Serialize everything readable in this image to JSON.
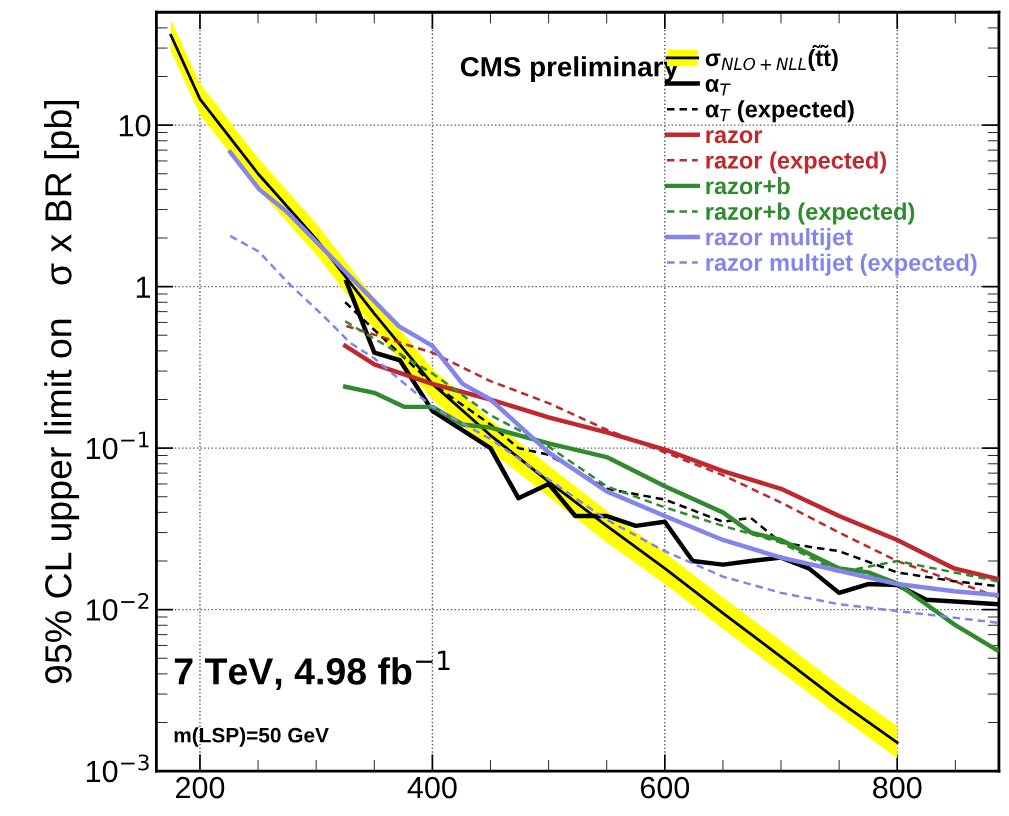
{
  "chart_data": {
    "type": "line",
    "ylabel": "95% CL upper limit on   σ x BR [pb]",
    "xlim": [
      162.5,
      887.5
    ],
    "xticks": [
      200,
      400,
      600,
      800
    ],
    "ylim": [
      0.001,
      50
    ],
    "log": "y",
    "yticks": [
      {
        "value": 0.001,
        "label": "10$^{−3}$"
      },
      {
        "value": 0.01,
        "label": "10$^{−2}$"
      },
      {
        "value": 0.1,
        "label": "10$^{−1}$"
      },
      1,
      10
    ],
    "grid": true,
    "legend": "top right",
    "line_style": "solid",
    "marker": "none",
    "annotations": [
      "CMS preliminary",
      "7 TeV, 4.98 fb$^{−1}$",
      "m(LSP)=50 GeV"
    ],
    "series": [
      {
        "name": "σ$_{NLO+NLL}$(t̃t̃)",
        "color": "#000000",
        "x": [
          175,
          200,
          250,
          300,
          350,
          400,
          450,
          500,
          550,
          600,
          650,
          700,
          750,
          800
        ],
        "values": [
          36,
          14.5,
          5.0,
          1.97,
          0.68,
          0.25,
          0.12,
          0.062,
          0.033,
          0.018,
          0.0095,
          0.0051,
          0.0027,
          0.0015
        ],
        "lower": [
          28.8,
          11.6,
          4.0,
          1.58,
          0.54,
          0.2,
          0.096,
          0.05,
          0.026,
          0.0144,
          0.0076,
          0.0041,
          0.0022,
          0.0012
        ],
        "upper": [
          45,
          18.1,
          6.25,
          2.46,
          0.85,
          0.31,
          0.15,
          0.078,
          0.041,
          0.0225,
          0.0119,
          0.0064,
          0.0034,
          0.0019
        ]
      },
      {
        "name": "α$_{T}$",
        "color": "#000000",
        "x": [
          326,
          350,
          372,
          400,
          450,
          474,
          500,
          523,
          550,
          575,
          600,
          624,
          650,
          674,
          700,
          724,
          750,
          775,
          800,
          825,
          886
        ],
        "values": [
          1.07,
          0.39,
          0.35,
          0.17,
          0.1,
          0.049,
          0.06,
          0.038,
          0.038,
          0.033,
          0.035,
          0.02,
          0.019,
          0.02,
          0.021,
          0.018,
          0.0127,
          0.0144,
          0.0142,
          0.0115,
          0.0108
        ]
      },
      {
        "name": "α$_{T}$ (expected)",
        "color": "#000000",
        "line_style": "dashed",
        "x": [
          325,
          350,
          400,
          450,
          474,
          500,
          550,
          600,
          650,
          674,
          700,
          750,
          800,
          849,
          886
        ],
        "values": [
          0.8,
          0.54,
          0.25,
          0.14,
          0.1,
          0.091,
          0.056,
          0.048,
          0.035,
          0.037,
          0.026,
          0.023,
          0.017,
          0.015,
          0.014
        ]
      },
      {
        "name": "razor",
        "color": "#c0282d",
        "x": [
          325,
          350,
          400,
          450,
          500,
          550,
          600,
          650,
          700,
          750,
          800,
          849,
          886
        ],
        "values": [
          0.43,
          0.33,
          0.25,
          0.2,
          0.155,
          0.125,
          0.098,
          0.072,
          0.056,
          0.038,
          0.027,
          0.018,
          0.0155
        ]
      },
      {
        "name": "razor (expected)",
        "color": "#c0282d",
        "line_style": "dashed",
        "x": [
          326,
          400,
          450,
          500,
          550,
          600,
          650,
          700,
          750,
          800,
          849,
          886
        ],
        "values": [
          0.57,
          0.39,
          0.26,
          0.19,
          0.13,
          0.094,
          0.068,
          0.046,
          0.03,
          0.02,
          0.015,
          0.012
        ]
      },
      {
        "name": "razor+b",
        "color": "#2e8b2e",
        "x": [
          325,
          350,
          376,
          400,
          426,
          450,
          500,
          550,
          600,
          650,
          674,
          700,
          750,
          775,
          800,
          833,
          849,
          886
        ],
        "values": [
          0.24,
          0.22,
          0.18,
          0.18,
          0.14,
          0.134,
          0.107,
          0.088,
          0.058,
          0.04,
          0.03,
          0.027,
          0.018,
          0.017,
          0.0145,
          0.0098,
          0.0081,
          0.0056
        ]
      },
      {
        "name": "razor+b (expected)",
        "color": "#2e8b2e",
        "line_style": "dashed",
        "x": [
          325,
          400,
          450,
          496,
          550,
          600,
          650,
          700,
          750,
          800,
          849,
          886
        ],
        "values": [
          0.61,
          0.29,
          0.16,
          0.107,
          0.058,
          0.043,
          0.033,
          0.026,
          0.017,
          0.02,
          0.017,
          0.015
        ]
      },
      {
        "name": "razor multijet",
        "color": "#8484ec",
        "x": [
          226,
          251,
          275,
          329,
          371,
          400,
          426,
          450,
          500,
          550,
          600,
          650,
          700,
          750,
          800,
          849,
          886
        ],
        "values": [
          6.8,
          4.0,
          2.9,
          1.16,
          0.57,
          0.43,
          0.25,
          0.2,
          0.094,
          0.054,
          0.038,
          0.027,
          0.021,
          0.0174,
          0.0144,
          0.013,
          0.0123
        ]
      },
      {
        "name": "razor multijet (expected)",
        "color": "#8484ec",
        "line_style": "dashed",
        "x": [
          226,
          251,
          275,
          309,
          329,
          350,
          400,
          450,
          500,
          550,
          600,
          650,
          700,
          750,
          800,
          886
        ],
        "values": [
          2.06,
          1.64,
          1.07,
          0.63,
          0.45,
          0.36,
          0.18,
          0.114,
          0.064,
          0.036,
          0.023,
          0.016,
          0.0127,
          0.0108,
          0.0098,
          0.0083
        ]
      }
    ]
  }
}
